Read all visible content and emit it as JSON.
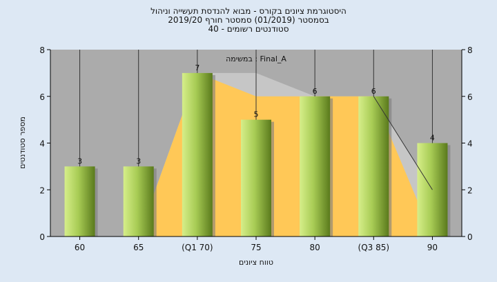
{
  "chart_data": {
    "type": "bar",
    "title_lines": [
      "היסטוגרמת ציונים בקורס - מבוא להנדסת תעשייה וניהול",
      "בסמסטר  (01/2019)  סמסטר חורף 2019/20",
      "סטודנטים רשומים - 40"
    ],
    "task_label": "במשימה : Final_A",
    "categories": [
      "60",
      "65",
      "(Q1 70)",
      "75",
      "80",
      "(Q3 85)",
      "90"
    ],
    "values": [
      3,
      3,
      7,
      5,
      6,
      6,
      4
    ],
    "data_labels": [
      "3",
      "3",
      "7",
      "5",
      "6",
      "6",
      "4"
    ],
    "area_series": [
      {
        "name": "",
        "color": "#c6c6c6",
        "values": [
          0,
          0,
          7,
          7,
          6,
          6,
          2
        ]
      },
      {
        "name": "",
        "color": "#ffc857",
        "values": [
          0,
          0,
          7,
          6,
          6,
          6,
          0
        ]
      }
    ],
    "trend_line": {
      "color": "#333333",
      "points": [
        [
          5,
          6
        ],
        [
          6,
          2
        ]
      ]
    },
    "xlabel": "טווח ציונים",
    "ylabel": "מספר סטודנטים",
    "ylim": [
      0,
      8
    ],
    "yticks": [
      "0",
      "2",
      "4",
      "6",
      "8"
    ],
    "right_axis": true,
    "grid": "vertical",
    "colors": {
      "background": "#dde8f4",
      "plot_background": "#ababab",
      "bar_light": "#d6ee8a",
      "bar_dark": "#5a7a1c",
      "gridline": "#333333"
    }
  }
}
